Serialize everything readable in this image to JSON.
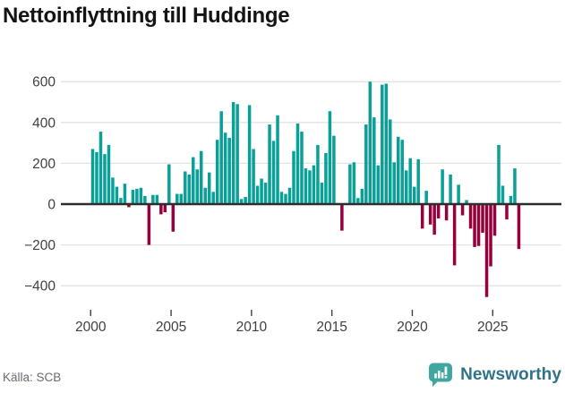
{
  "title": "Nettoinflyttning till Huddinge",
  "source": "Källa: SCB",
  "brand": {
    "name": "Newsworthy"
  },
  "chart_data": {
    "type": "bar",
    "title": "Nettoinflyttning till Huddinge",
    "frequency": "quarterly",
    "start_period": "2000 Q1",
    "x_tick_labels": [
      "2000",
      "2005",
      "2010",
      "2015",
      "2020",
      "2025"
    ],
    "y_ticks": [
      600,
      400,
      200,
      0,
      -200,
      -400
    ],
    "ylim": [
      -500,
      650
    ],
    "grid": "horizontal",
    "colors": {
      "positive": "#0aa098",
      "negative": "#96003c"
    },
    "values": [
      270,
      255,
      355,
      245,
      290,
      130,
      85,
      30,
      100,
      -15,
      70,
      75,
      80,
      40,
      -200,
      45,
      45,
      -50,
      -40,
      195,
      -135,
      50,
      50,
      160,
      145,
      230,
      170,
      260,
      80,
      155,
      60,
      315,
      455,
      350,
      325,
      500,
      490,
      25,
      35,
      485,
      270,
      90,
      125,
      105,
      390,
      310,
      435,
      60,
      50,
      80,
      260,
      395,
      355,
      175,
      165,
      190,
      290,
      105,
      250,
      455,
      335,
      5,
      -130,
      5,
      195,
      205,
      30,
      75,
      390,
      600,
      425,
      190,
      585,
      590,
      415,
      205,
      330,
      315,
      165,
      225,
      85,
      220,
      -120,
      65,
      -100,
      -150,
      -70,
      170,
      -80,
      145,
      -300,
      95,
      -55,
      20,
      -120,
      -210,
      -205,
      -140,
      -455,
      -305,
      -155,
      290,
      90,
      -75,
      40,
      175,
      -220
    ]
  }
}
